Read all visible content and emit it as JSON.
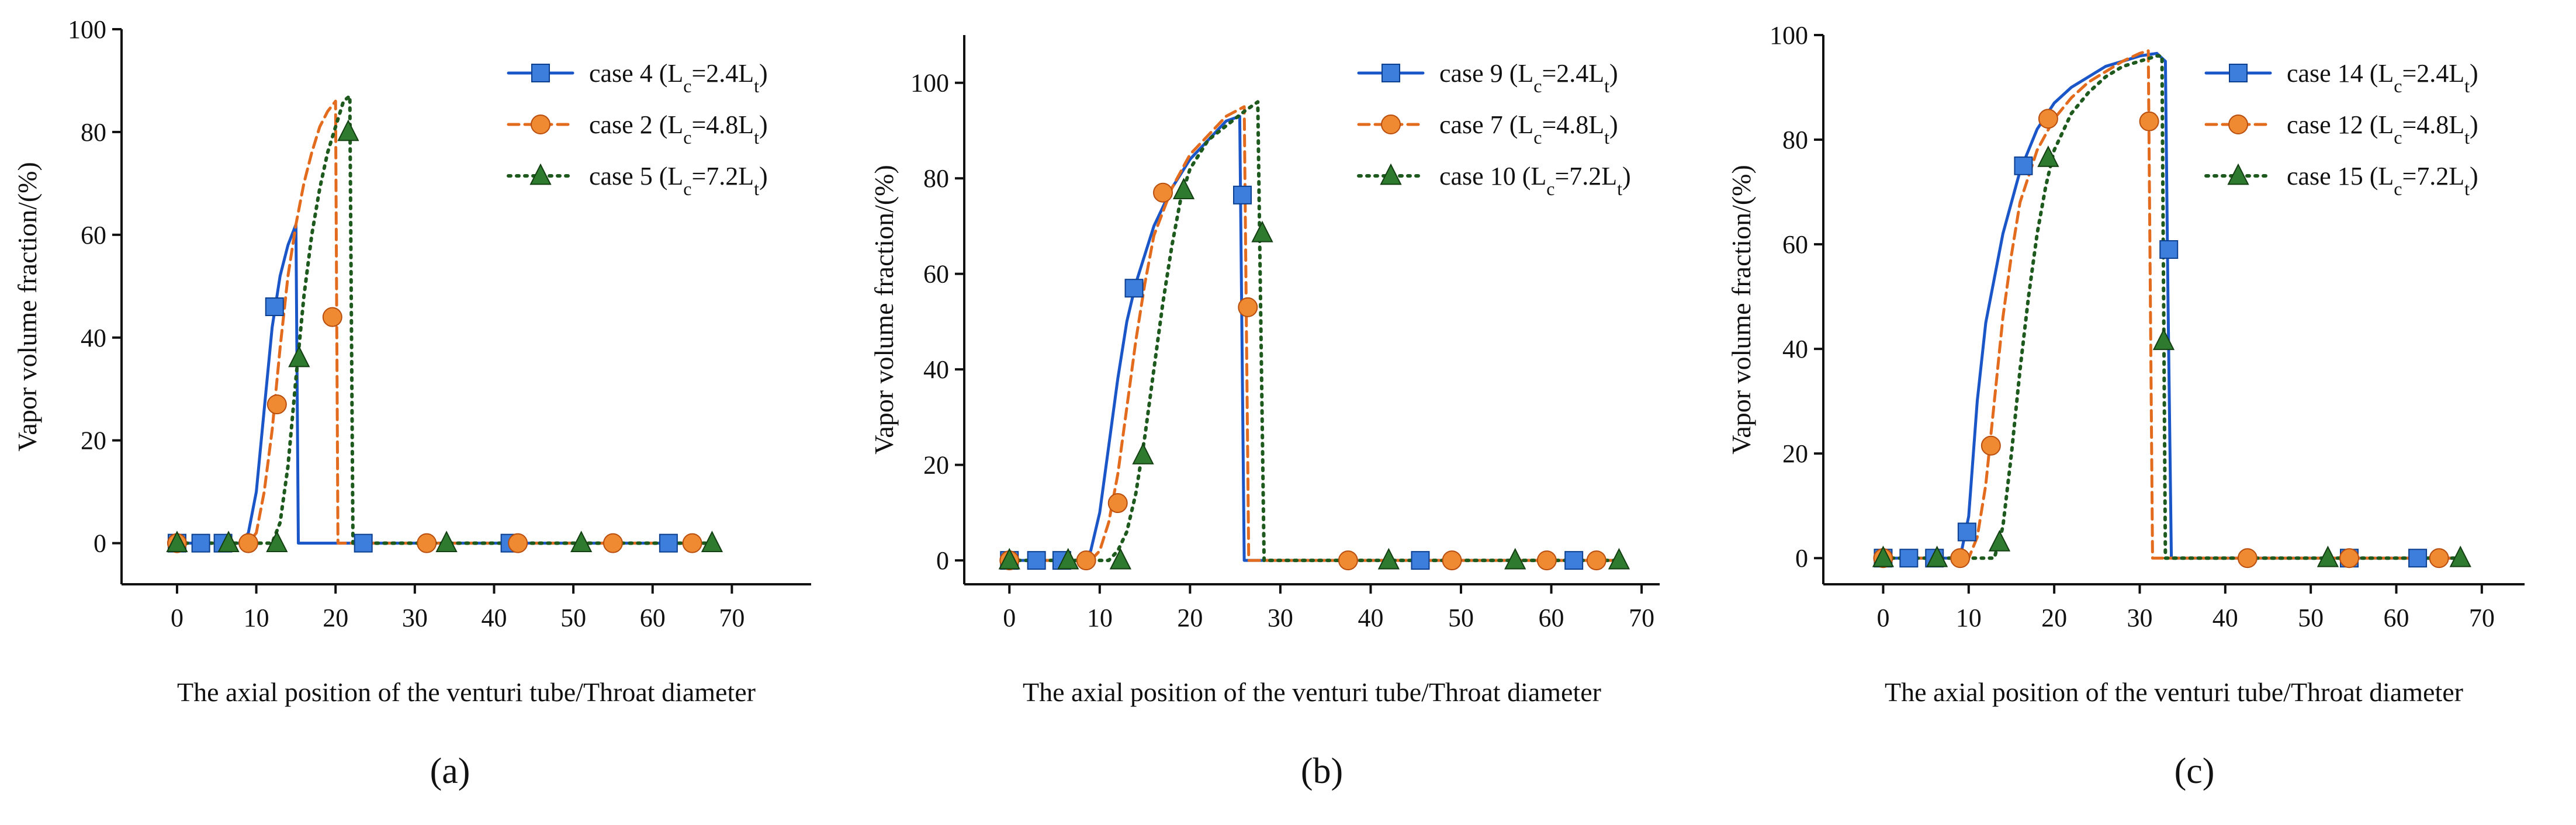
{
  "figure": {
    "panel_labels": [
      "(a)",
      "(b)",
      "(c)"
    ]
  },
  "colors": {
    "blue": "#1a56c8",
    "blue_marker": "#3d7ddc",
    "orange": "#e36b1e",
    "orange_marker": "#f08a32",
    "green": "#1e5a1e",
    "green_marker": "#2e7a2e",
    "axis": "#111111"
  },
  "chart_data": [
    {
      "type": "line",
      "panel": "(a)",
      "title": "",
      "xlabel": "The axial position of the venturi tube/Throat diameter",
      "ylabel": "Vapor volume fraction/(%)",
      "xlim": [
        -7,
        80
      ],
      "ylim": [
        -8,
        100
      ],
      "xticks": [
        0,
        10,
        20,
        30,
        40,
        50,
        60,
        70
      ],
      "yticks": [
        0,
        20,
        40,
        60,
        80,
        100
      ],
      "legend_position": "top-right",
      "series": [
        {
          "name": "case 4 (Lc=2.4Lt)",
          "legend_main": "case 4 (L",
          "legend_sub1": "c",
          "legend_mid": "=2.4L",
          "legend_sub2": "t",
          "legend_end": ")",
          "style": "solid",
          "marker": "square",
          "color_key": "blue",
          "line": [
            [
              0,
              0
            ],
            [
              8,
              0
            ],
            [
              9,
              2
            ],
            [
              10,
              10
            ],
            [
              11,
              26
            ],
            [
              12,
              42
            ],
            [
              13,
              52
            ],
            [
              14,
              58
            ],
            [
              15,
              62
            ],
            [
              15.3,
              0
            ],
            [
              67.5,
              0
            ]
          ],
          "markers": [
            [
              0,
              0
            ],
            [
              3,
              0
            ],
            [
              5.8,
              0
            ],
            [
              12.3,
              46
            ],
            [
              23.5,
              0
            ],
            [
              42,
              0
            ],
            [
              62,
              0
            ]
          ]
        },
        {
          "name": "case 2 (Lc=4.8Lt)",
          "legend_main": "case 2 (L",
          "legend_sub1": "c",
          "legend_mid": "=4.8L",
          "legend_sub2": "t",
          "legend_end": ")",
          "style": "dashed",
          "marker": "circle",
          "color_key": "orange",
          "line": [
            [
              0,
              0
            ],
            [
              9,
              0
            ],
            [
              10,
              2
            ],
            [
              11,
              10
            ],
            [
              12,
              22
            ],
            [
              13,
              38
            ],
            [
              14,
              52
            ],
            [
              15,
              62
            ],
            [
              16,
              70
            ],
            [
              17,
              76
            ],
            [
              18,
              81
            ],
            [
              19,
              84
            ],
            [
              20,
              86
            ],
            [
              20.3,
              0
            ],
            [
              67.5,
              0
            ]
          ],
          "markers": [
            [
              0,
              0
            ],
            [
              9,
              0
            ],
            [
              12.6,
              27
            ],
            [
              19.6,
              44
            ],
            [
              31.5,
              0
            ],
            [
              43,
              0
            ],
            [
              55,
              0
            ],
            [
              65,
              0
            ]
          ]
        },
        {
          "name": "case 5 (Lc=7.2Lt)",
          "legend_main": "case 5 (L",
          "legend_sub1": "c",
          "legend_mid": "=7.2L",
          "legend_sub2": "t",
          "legend_end": ")",
          "style": "dotted",
          "marker": "triangle",
          "color_key": "green",
          "line": [
            [
              0,
              0
            ],
            [
              12,
              0
            ],
            [
              13,
              4
            ],
            [
              14,
              15
            ],
            [
              15,
              32
            ],
            [
              16,
              48
            ],
            [
              17,
              60
            ],
            [
              18,
              69
            ],
            [
              19,
              76
            ],
            [
              20,
              81
            ],
            [
              21,
              86
            ],
            [
              21.8,
              87
            ],
            [
              22.2,
              0
            ],
            [
              67.5,
              0
            ]
          ],
          "markers": [
            [
              0,
              0
            ],
            [
              6.5,
              0
            ],
            [
              12.6,
              0
            ],
            [
              15.4,
              36
            ],
            [
              21.6,
              80
            ],
            [
              34,
              0
            ],
            [
              51,
              0
            ],
            [
              67.5,
              0
            ]
          ]
        }
      ]
    },
    {
      "type": "line",
      "panel": "(b)",
      "title": "",
      "xlabel": "The axial position of the venturi tube/Throat diameter",
      "ylabel": "Vapor volume fraction/(%)",
      "xlim": [
        -5,
        72
      ],
      "ylim": [
        -5,
        110
      ],
      "xticks": [
        0,
        10,
        20,
        30,
        40,
        50,
        60,
        70
      ],
      "yticks": [
        0,
        20,
        40,
        60,
        80,
        100
      ],
      "legend_position": "top-right",
      "series": [
        {
          "name": "case 9 (Lc=2.4Lt)",
          "legend_main": "case 9 (L",
          "legend_sub1": "c",
          "legend_mid": "=2.4L",
          "legend_sub2": "t",
          "legend_end": ")",
          "style": "solid",
          "marker": "square",
          "color_key": "blue",
          "line": [
            [
              0,
              0
            ],
            [
              8,
              0
            ],
            [
              9,
              2
            ],
            [
              10,
              10
            ],
            [
              11,
              24
            ],
            [
              12,
              38
            ],
            [
              13,
              50
            ],
            [
              14,
              58
            ],
            [
              16,
              70
            ],
            [
              18,
              78
            ],
            [
              20,
              84
            ],
            [
              22,
              88
            ],
            [
              24,
              92
            ],
            [
              25.5,
              93
            ],
            [
              26,
              0
            ],
            [
              67.5,
              0
            ]
          ],
          "markers": [
            [
              0,
              0
            ],
            [
              3,
              0
            ],
            [
              5.8,
              0
            ],
            [
              13.8,
              57
            ],
            [
              25.8,
              76.5
            ],
            [
              45.5,
              0
            ],
            [
              62.5,
              0
            ]
          ]
        },
        {
          "name": "case 7 (Lc=4.8Lt)",
          "legend_main": "case 7 (L",
          "legend_sub1": "c",
          "legend_mid": "=4.8L",
          "legend_sub2": "t",
          "legend_end": ")",
          "style": "dashed",
          "marker": "circle",
          "color_key": "orange",
          "line": [
            [
              0,
              0
            ],
            [
              9,
              0
            ],
            [
              10,
              2
            ],
            [
              11,
              8
            ],
            [
              12,
              18
            ],
            [
              13,
              32
            ],
            [
              14,
              46
            ],
            [
              15,
              58
            ],
            [
              16,
              68
            ],
            [
              18,
              78
            ],
            [
              20,
              85
            ],
            [
              22,
              89
            ],
            [
              24,
              93
            ],
            [
              26,
              95
            ],
            [
              26.5,
              0
            ],
            [
              67.5,
              0
            ]
          ],
          "markers": [
            [
              0,
              0
            ],
            [
              8.5,
              0
            ],
            [
              12,
              12
            ],
            [
              17,
              77
            ],
            [
              26.4,
              53
            ],
            [
              37.5,
              0
            ],
            [
              49,
              0
            ],
            [
              59.5,
              0
            ],
            [
              65,
              0
            ]
          ]
        },
        {
          "name": "case 10 (Lc=7.2Lt)",
          "legend_main": "case 10 (L",
          "legend_sub1": "c",
          "legend_mid": "=7.2L",
          "legend_sub2": "t",
          "legend_end": ")",
          "style": "dotted",
          "marker": "triangle",
          "color_key": "green",
          "line": [
            [
              0,
              0
            ],
            [
              11,
              0
            ],
            [
              12,
              2
            ],
            [
              13,
              6
            ],
            [
              14,
              14
            ],
            [
              15,
              26
            ],
            [
              16,
              40
            ],
            [
              17,
              54
            ],
            [
              18,
              66
            ],
            [
              19,
              76
            ],
            [
              20,
              82
            ],
            [
              22,
              88
            ],
            [
              24,
              91
            ],
            [
              26,
              94
            ],
            [
              27.5,
              96
            ],
            [
              28.2,
              0
            ],
            [
              67.5,
              0
            ]
          ],
          "markers": [
            [
              0,
              0
            ],
            [
              6.5,
              0
            ],
            [
              12.3,
              0
            ],
            [
              14.8,
              22
            ],
            [
              19.3,
              77.5
            ],
            [
              28,
              68.5
            ],
            [
              42,
              0
            ],
            [
              56,
              0
            ],
            [
              67.5,
              0
            ]
          ]
        }
      ]
    },
    {
      "type": "line",
      "panel": "(c)",
      "title": "",
      "xlabel": "The axial position of the venturi tube/Throat diameter",
      "ylabel": "Vapor volume fraction/(%)",
      "xlim": [
        -7,
        75
      ],
      "ylim": [
        -5,
        100
      ],
      "xticks": [
        0,
        10,
        20,
        30,
        40,
        50,
        60,
        70
      ],
      "yticks": [
        0,
        20,
        40,
        60,
        80,
        100
      ],
      "legend_position": "top-right",
      "series": [
        {
          "name": "case 14 (Lc=2.4Lt)",
          "legend_main": "case 14 (L",
          "legend_sub1": "c",
          "legend_mid": "=2.4L",
          "legend_sub2": "t",
          "legend_end": ")",
          "style": "solid",
          "marker": "square",
          "color_key": "blue",
          "line": [
            [
              0,
              0
            ],
            [
              9,
              0
            ],
            [
              10,
              8
            ],
            [
              11,
              30
            ],
            [
              12,
              45
            ],
            [
              14,
              62
            ],
            [
              16,
              74
            ],
            [
              18,
              82
            ],
            [
              20,
              87
            ],
            [
              22,
              90
            ],
            [
              24,
              92
            ],
            [
              26,
              94
            ],
            [
              28,
              95
            ],
            [
              30,
              96
            ],
            [
              32,
              96.5
            ],
            [
              33,
              95
            ],
            [
              33.3,
              50
            ],
            [
              33.7,
              0
            ],
            [
              67.5,
              0
            ]
          ],
          "markers": [
            [
              0,
              0
            ],
            [
              3,
              0
            ],
            [
              6,
              0
            ],
            [
              9.8,
              5
            ],
            [
              16.4,
              75
            ],
            [
              33.4,
              59
            ],
            [
              54.5,
              0
            ],
            [
              62.5,
              0
            ]
          ]
        },
        {
          "name": "case 12 (Lc=4.8Lt)",
          "legend_main": "case 12 (L",
          "legend_sub1": "c",
          "legend_mid": "=4.8L",
          "legend_sub2": "t",
          "legend_end": ")",
          "style": "dashed",
          "marker": "circle",
          "color_key": "orange",
          "line": [
            [
              0,
              0
            ],
            [
              10,
              0
            ],
            [
              11,
              4
            ],
            [
              12,
              14
            ],
            [
              13,
              30
            ],
            [
              14,
              46
            ],
            [
              15,
              58
            ],
            [
              16,
              68
            ],
            [
              18,
              78
            ],
            [
              20,
              84
            ],
            [
              22,
              88
            ],
            [
              24,
              91
            ],
            [
              26,
              93
            ],
            [
              28,
              95
            ],
            [
              30,
              96.5
            ],
            [
              31,
              97
            ],
            [
              31.5,
              0
            ],
            [
              67.5,
              0
            ]
          ],
          "markers": [
            [
              0,
              0
            ],
            [
              9,
              0
            ],
            [
              12.6,
              21.5
            ],
            [
              19.3,
              84
            ],
            [
              31.1,
              83.5
            ],
            [
              42.6,
              0
            ],
            [
              54.5,
              0
            ],
            [
              65,
              0
            ]
          ]
        },
        {
          "name": "case 15 (Lc=7.2Lt)",
          "legend_main": "case 15 (L",
          "legend_sub1": "c",
          "legend_mid": "=7.2L",
          "legend_sub2": "t",
          "legend_end": ")",
          "style": "dotted",
          "marker": "triangle",
          "color_key": "green",
          "line": [
            [
              0,
              0
            ],
            [
              13,
              0
            ],
            [
              14,
              6
            ],
            [
              15,
              20
            ],
            [
              16,
              36
            ],
            [
              17,
              50
            ],
            [
              18,
              62
            ],
            [
              19,
              71
            ],
            [
              20,
              78
            ],
            [
              22,
              85
            ],
            [
              24,
              89
            ],
            [
              26,
              92
            ],
            [
              28,
              94
            ],
            [
              30,
              95
            ],
            [
              32,
              96
            ],
            [
              32.6,
              96
            ],
            [
              33,
              0
            ],
            [
              67.5,
              0
            ]
          ],
          "markers": [
            [
              0,
              0
            ],
            [
              6.3,
              0
            ],
            [
              13.6,
              3
            ],
            [
              19.3,
              76.5
            ],
            [
              32.8,
              41.5
            ],
            [
              52,
              0
            ],
            [
              67.5,
              0
            ]
          ]
        }
      ]
    }
  ]
}
